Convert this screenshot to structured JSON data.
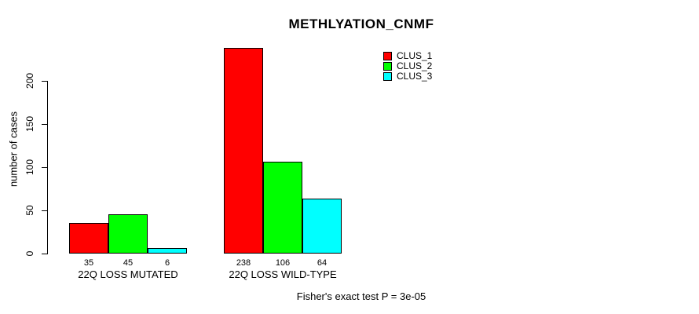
{
  "chart_data": {
    "type": "bar",
    "title": "METHLYATION_CNMF",
    "ylabel": "number of cases",
    "xlabel": "",
    "categories": [
      "22Q LOSS MUTATED",
      "22Q LOSS WILD-TYPE"
    ],
    "series": [
      {
        "name": "CLUS_1",
        "color": "#ff0000",
        "values": [
          35,
          238
        ]
      },
      {
        "name": "CLUS_2",
        "color": "#00ff00",
        "values": [
          45,
          106
        ]
      },
      {
        "name": "CLUS_3",
        "color": "#00ffff",
        "values": [
          6,
          64
        ]
      }
    ],
    "yticks": [
      0,
      50,
      100,
      150,
      200
    ],
    "ylim": [
      0,
      240
    ],
    "grid": false,
    "bar_value_labels_shown": true,
    "legend_position": "topright",
    "annotation": "Fisher's exact test P = 3e-05"
  },
  "colors": {
    "background": "#ffffff",
    "axis": "#000000",
    "text": "#000000"
  }
}
